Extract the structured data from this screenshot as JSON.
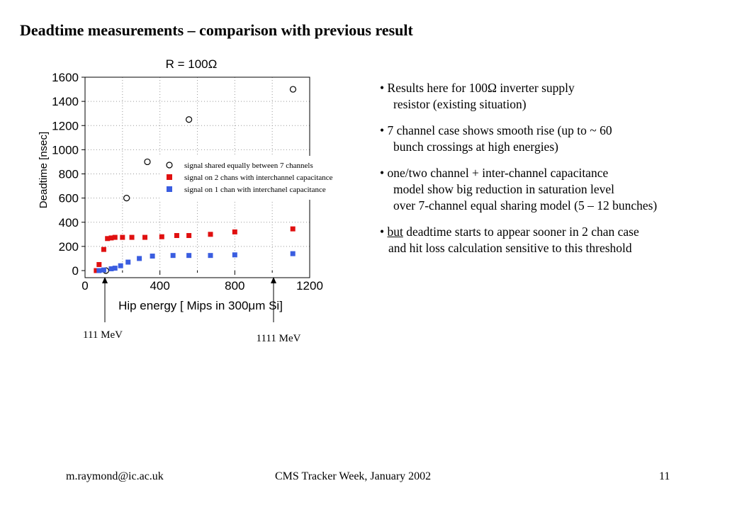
{
  "slide": {
    "title": "Deadtime measurements – comparison with previous result",
    "footer": {
      "left": "m.raymond@ic.ac.uk",
      "center": "CMS Tracker Week, January 2002",
      "right": "11"
    }
  },
  "bullets": [
    {
      "lines": [
        "Results here for 100Ω inverter supply",
        "resistor (existing situation)"
      ]
    },
    {
      "lines": [
        "7 channel case shows smooth rise (up to ~ 60",
        "bunch crossings at high energies)"
      ]
    },
    {
      "lines": [
        "one/two channel + inter-channel capacitance",
        "model show big reduction in saturation level",
        "over 7-channel equal sharing model (5 – 12 bunches)"
      ]
    },
    {
      "underlined": "but",
      "first_rest": " deadtime starts to appear sooner in 2 chan case",
      "lines": [
        "and hit loss calculation sensitive to this threshold"
      ]
    }
  ],
  "annotations": [
    {
      "label": "111 MeV",
      "x": 111
    },
    {
      "label": "1111 MeV",
      "x": 1111
    }
  ],
  "chart_data": {
    "type": "scatter",
    "title": "R = 100Ω",
    "xlabel": "Hip energy [ Mips in 300μm Si]",
    "ylabel": "Deadtime [nsec]",
    "xlim": [
      0,
      1200
    ],
    "ylim": [
      0,
      1600
    ],
    "xticks": [
      0,
      400,
      800,
      1200
    ],
    "yticks": [
      0,
      200,
      400,
      600,
      800,
      1000,
      1200,
      1400,
      1600
    ],
    "grid": "dotted",
    "legend": "inside-right",
    "series": [
      {
        "name": "signal shared equally between 7 channels",
        "marker": "open-circle",
        "color": "#000000",
        "points": [
          [
            111,
            0
          ],
          [
            222,
            600
          ],
          [
            333,
            900
          ],
          [
            555,
            1250
          ],
          [
            1111,
            1500
          ]
        ]
      },
      {
        "name": "signal on 2 chans with interchannel capacitance",
        "marker": "square",
        "color": "#e01010",
        "points": [
          [
            60,
            0
          ],
          [
            75,
            50
          ],
          [
            100,
            175
          ],
          [
            120,
            265
          ],
          [
            140,
            270
          ],
          [
            160,
            275
          ],
          [
            200,
            275
          ],
          [
            250,
            275
          ],
          [
            320,
            275
          ],
          [
            410,
            280
          ],
          [
            490,
            290
          ],
          [
            555,
            290
          ],
          [
            670,
            300
          ],
          [
            800,
            320
          ],
          [
            1110,
            345
          ]
        ]
      },
      {
        "name": "signal on 1 chan with interchanel capacitance",
        "marker": "square",
        "color": "#3a5de0",
        "points": [
          [
            75,
            0
          ],
          [
            100,
            5
          ],
          [
            140,
            15
          ],
          [
            160,
            20
          ],
          [
            190,
            40
          ],
          [
            230,
            70
          ],
          [
            290,
            100
          ],
          [
            360,
            120
          ],
          [
            470,
            125
          ],
          [
            555,
            125
          ],
          [
            670,
            125
          ],
          [
            800,
            130
          ],
          [
            1110,
            140
          ]
        ]
      }
    ]
  }
}
